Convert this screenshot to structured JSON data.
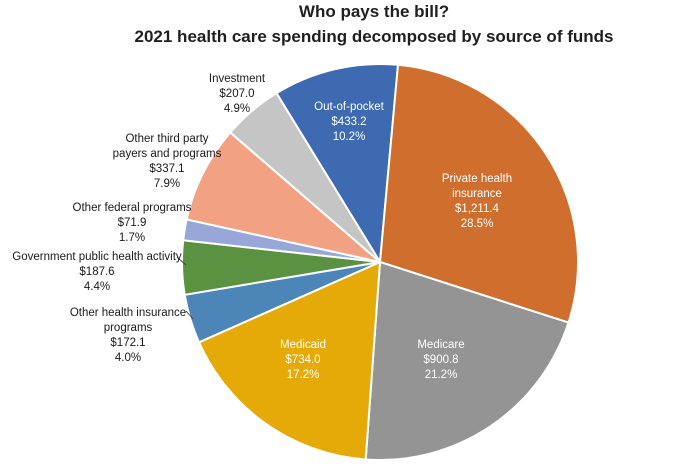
{
  "chart_data": {
    "type": "pie",
    "title": "Who pays the bill?",
    "subtitle": "2021 health care spending decomposed by source of funds",
    "legend": "none",
    "start_angle_deg": -31.5,
    "clockwise": true,
    "slices": [
      {
        "id": "out-of-pocket",
        "label": "Out-of-pocket",
        "label_lines": [
          "Out-of-pocket"
        ],
        "value": 433.2,
        "value_display": "$433.2",
        "percent": 10.2,
        "pct_display": "10.2%",
        "color": "#3D6AB1",
        "label_inside": true
      },
      {
        "id": "private-health-insurance",
        "label": "Private health insurance",
        "label_lines": [
          "Private health",
          "insurance"
        ],
        "value": 1211.4,
        "value_display": "$1,211.4",
        "percent": 28.5,
        "pct_display": "28.5%",
        "color": "#D06F2D",
        "label_inside": true
      },
      {
        "id": "medicare",
        "label": "Medicare",
        "label_lines": [
          "Medicare"
        ],
        "value": 900.8,
        "value_display": "$900.8",
        "percent": 21.2,
        "pct_display": "21.2%",
        "color": "#949494",
        "label_inside": true
      },
      {
        "id": "medicaid",
        "label": "Medicaid",
        "label_lines": [
          "Medicaid"
        ],
        "value": 734.0,
        "value_display": "$734.0",
        "percent": 17.2,
        "pct_display": "17.2%",
        "color": "#E5AA08",
        "label_inside": true
      },
      {
        "id": "other-health-insurance-programs",
        "label": "Other health insurance programs",
        "label_lines": [
          "Other health insurance",
          "programs"
        ],
        "value": 172.1,
        "value_display": "$172.1",
        "percent": 4.0,
        "pct_display": "4.0%",
        "color": "#4C86B8",
        "label_inside": false
      },
      {
        "id": "government-public-health-activity",
        "label": "Government public health activity",
        "label_lines": [
          "Government public health activity"
        ],
        "value": 187.6,
        "value_display": "$187.6",
        "percent": 4.4,
        "pct_display": "4.4%",
        "color": "#5B9242",
        "label_inside": false
      },
      {
        "id": "other-federal-programs",
        "label": "Other federal programs",
        "label_lines": [
          "Other federal programs"
        ],
        "value": 71.9,
        "value_display": "$71.9",
        "percent": 1.7,
        "pct_display": "1.7%",
        "color": "#97A7D7",
        "label_inside": false
      },
      {
        "id": "other-third-party-payers-and-programs",
        "label": "Other third party payers and programs",
        "label_lines": [
          "Other third party",
          "payers and programs"
        ],
        "value": 337.1,
        "value_display": "$337.1",
        "percent": 7.9,
        "pct_display": "7.9%",
        "color": "#F2A283",
        "label_inside": false
      },
      {
        "id": "investment",
        "label": "Investment",
        "label_lines": [
          "Investment"
        ],
        "value": 207.0,
        "value_display": "$207.0",
        "percent": 4.9,
        "pct_display": "4.9%",
        "color": "#C5C5C6",
        "label_inside": false
      }
    ]
  }
}
